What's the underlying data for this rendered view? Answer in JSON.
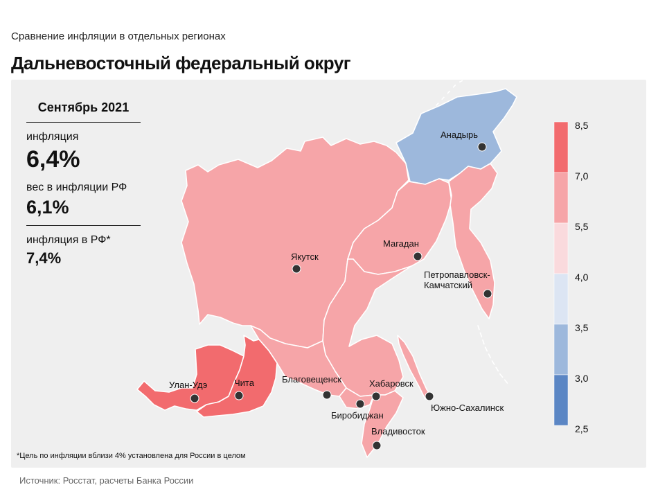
{
  "header": {
    "subtitle": "Сравнение  инфляции  в отдельных  регионах",
    "title": "Дальневосточный федеральный округ"
  },
  "stats": {
    "period": "Сентябрь 2021",
    "inflation_label": "инфляция",
    "inflation_value": "6,4%",
    "weight_label": "вес в инфляции  РФ",
    "weight_value": "6,1%",
    "rf_label": "инфляция  в РФ*",
    "rf_value": "7,4%"
  },
  "legend": {
    "bins": [
      {
        "from": 7.0,
        "to": 8.5,
        "color": "#f26b6e"
      },
      {
        "from": 5.5,
        "to": 7.0,
        "color": "#f6a5a8"
      },
      {
        "from": 4.0,
        "to": 5.5,
        "color": "#fadadd"
      },
      {
        "from": 3.5,
        "to": 4.0,
        "color": "#dce5f3"
      },
      {
        "from": 3.0,
        "to": 3.5,
        "color": "#9db8dc"
      },
      {
        "from": 2.5,
        "to": 3.0,
        "color": "#5b86c4"
      }
    ],
    "tick_labels": [
      "8,5",
      "7,0",
      "5,5",
      "4,0",
      "3,5",
      "3,0",
      "2,5"
    ]
  },
  "regions": [
    {
      "name": "Чукотка",
      "category": "3,0–3,5",
      "color": "#9db8dc"
    },
    {
      "name": "Якутия",
      "category": "5,5–7,0",
      "color": "#f6a5a8"
    },
    {
      "name": "Магаданская область",
      "category": "5,5–7,0",
      "color": "#f6a5a8"
    },
    {
      "name": "Камчатка",
      "category": "5,5–7,0",
      "color": "#f6a5a8"
    },
    {
      "name": "Хабаровский край",
      "category": "5,5–7,0",
      "color": "#f6a5a8"
    },
    {
      "name": "Амурская область",
      "category": "5,5–7,0",
      "color": "#f6a5a8"
    },
    {
      "name": "ЕАО",
      "category": "5,5–7,0",
      "color": "#f6a5a8"
    },
    {
      "name": "Приморье",
      "category": "5,5–7,0",
      "color": "#f6a5a8"
    },
    {
      "name": "Сахалин",
      "category": "5,5–7,0",
      "color": "#f6a5a8"
    },
    {
      "name": "Бурятия",
      "category": "7,0–8,5",
      "color": "#f26b6e"
    },
    {
      "name": "Забайкалье",
      "category": "7,0–8,5",
      "color": "#f26b6e"
    }
  ],
  "cities": {
    "anadyr": "Анадырь",
    "yakutsk": "Якутск",
    "magadan": "Магадан",
    "petropavlovsk_1": "Петропавловск-",
    "petropavlovsk_2": "Камчатский",
    "ulan_ude": "Улан-Удэ",
    "chita": "Чита",
    "blagoveshchensk": "Благовещенск",
    "khabarovsk": "Хабаровск",
    "birobidzhan": "Биробиджан",
    "vladivostok": "Владивосток",
    "yuzhno": "Южно-Сахалинск"
  },
  "footnote": "*Цель по инфляции вблизи 4% установлена для России в целом",
  "source": "Источник: Росстат, расчеты Банка России"
}
